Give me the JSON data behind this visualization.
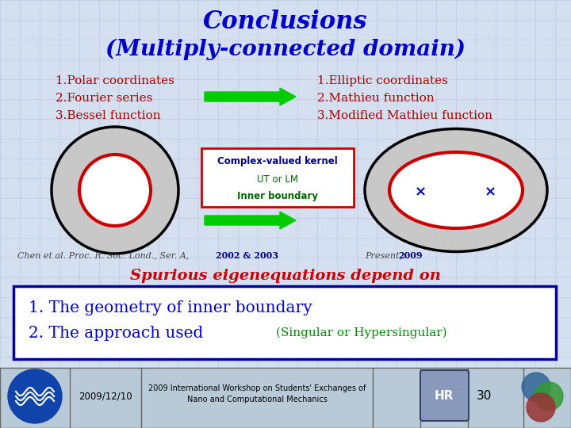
{
  "title_line1": "Conclusions",
  "title_line2": "(Multiply-connected domain)",
  "title_color": "#0000CC",
  "bg_color": "#D4DFF0",
  "grid_color": "#9999BB",
  "left_items": [
    "1.Polar coordinates",
    "2.Fourier series",
    "3.Bessel function"
  ],
  "right_items": [
    "1.Elliptic coordinates",
    "2.Mathieu function",
    "3.Modified Mathieu function"
  ],
  "list_color": "#AA0000",
  "box_lines": [
    "Complex-valued kernel",
    "UT or LM",
    "Inner boundary"
  ],
  "box_line_colors": [
    "#000080",
    "#006600",
    "#006600"
  ],
  "box_border_color": "#CC0000",
  "arrow_color": "#00CC00",
  "left_cite": "Chen et al. Proc. R. Soc. Lond., Ser. A,",
  "left_cite_bold": "2002 & 2003",
  "right_cite": "Present,",
  "right_cite_bold": "2009",
  "cite_color": "#444444",
  "cite_bold_color": "#000080",
  "spurious_text": "Spurious eigenequations depend on",
  "spurious_color": "#CC0000",
  "bottom_line1": "1. The geometry of inner boundary",
  "bottom_line2_normal": "2. The approach used",
  "bottom_line2_paren": "(Singular or Hypersingular)",
  "bottom_text_color": "#0000CC",
  "bottom_paren_color": "#008800",
  "bottom_box_color": "#0000AA",
  "footer_date": "2009/12/10",
  "footer_center": "2009 International Workshop on Students' Exchanges of\nNano and Computational Mechanics",
  "footer_number": "30",
  "footer_bg": "#B8CAD8",
  "footer_border": "#666666"
}
